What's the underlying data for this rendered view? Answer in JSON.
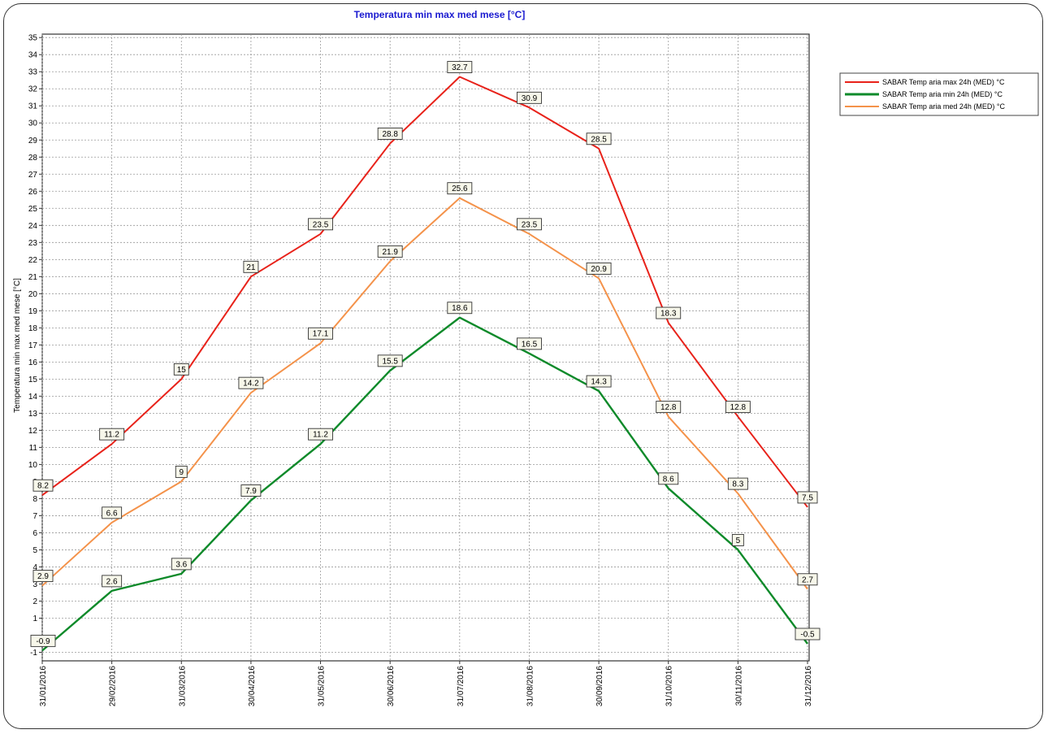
{
  "chart_data": {
    "type": "line",
    "title": "Temperatura min max med mese [°C]",
    "ylabel": "Temperatura min max med mese [°C]",
    "xlabel": "",
    "ylim": [
      -1.5,
      35.2
    ],
    "yticks": [
      -1,
      1,
      2,
      3,
      4,
      5,
      6,
      7,
      8,
      9,
      10,
      11,
      12,
      13,
      14,
      15,
      16,
      17,
      18,
      19,
      20,
      21,
      22,
      23,
      24,
      25,
      26,
      27,
      28,
      29,
      30,
      31,
      32,
      33,
      34,
      35
    ],
    "grid": true,
    "legend_position": "top-right",
    "categories": [
      "31/01/2016",
      "29/02/2016",
      "31/03/2016",
      "30/04/2016",
      "31/05/2016",
      "30/06/2016",
      "31/07/2016",
      "31/08/2016",
      "30/09/2016",
      "31/10/2016",
      "30/11/2016",
      "31/12/2016"
    ],
    "series": [
      {
        "name": "SABAR Temp aria max 24h (MED) °C",
        "color": "#e8221a",
        "values": [
          8.2,
          11.2,
          15,
          21,
          23.5,
          28.8,
          32.7,
          30.9,
          28.5,
          18.3,
          12.8,
          7.5
        ],
        "labels": [
          "8.2",
          "11.2",
          "15",
          "21",
          "23.5",
          "28.8",
          "32.7",
          "30.9",
          "28.5",
          "18.3",
          "12.8",
          "7.5"
        ]
      },
      {
        "name": "SABAR Temp aria min 24h (MED) °C",
        "color": "#0e8a2a",
        "values": [
          -0.9,
          2.6,
          3.6,
          7.9,
          11.2,
          15.5,
          18.6,
          16.5,
          14.3,
          8.6,
          5,
          -0.5
        ],
        "labels": [
          "-0.9",
          "2.6",
          "3.6",
          "7.9",
          "11.2",
          "15.5",
          "18.6",
          "16.5",
          "14.3",
          "8.6",
          "5",
          "-0.5"
        ]
      },
      {
        "name": "SABAR Temp aria med 24h (MED) °C",
        "color": "#f4924a",
        "values": [
          2.9,
          6.6,
          9,
          14.2,
          17.1,
          21.9,
          25.6,
          23.5,
          20.9,
          12.8,
          8.3,
          2.7
        ],
        "labels": [
          "2.9",
          "6.6",
          "9",
          "14.2",
          "17.1",
          "21.9",
          "25.6",
          "23.5",
          "20.9",
          "12.8",
          "8.3",
          "2.7"
        ]
      }
    ]
  }
}
